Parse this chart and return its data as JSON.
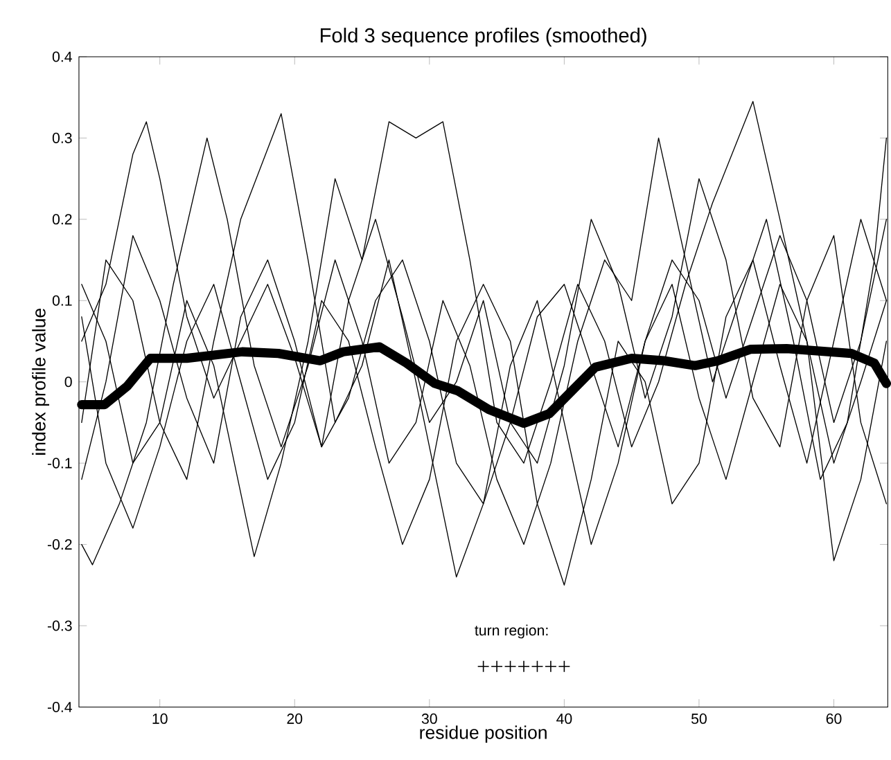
{
  "chart_data": {
    "type": "line",
    "title": "Fold 3 sequence profiles (smoothed)",
    "xlabel": "residue position",
    "ylabel": "index profile value",
    "xlim": [
      4,
      64
    ],
    "xticks": [
      10,
      20,
      30,
      40,
      50,
      60
    ],
    "ylim": [
      -0.4,
      0.4
    ],
    "yticks": [
      -0.4,
      -0.3,
      -0.2,
      -0.1,
      0,
      0.1,
      0.2,
      0.3,
      0.4
    ],
    "grid": false,
    "legend": false,
    "series": [
      {
        "color": "#000000",
        "x": [
          4.2,
          5.9,
          7.6,
          9.3,
          12.0,
          16.1,
          18.8,
          21.9,
          23.6,
          26.3,
          28.3,
          30.4,
          32.1,
          34.4,
          37.0,
          38.9,
          42.3,
          45.0,
          47.4,
          49.7,
          51.4,
          53.8,
          56.5,
          61.3,
          63.0,
          63.9
        ],
        "values": [
          -0.028,
          -0.028,
          -0.005,
          0.029,
          0.029,
          0.037,
          0.035,
          0.026,
          0.037,
          0.043,
          0.023,
          -0.002,
          -0.011,
          -0.034,
          -0.051,
          -0.039,
          0.018,
          0.029,
          0.026,
          0.02,
          0.026,
          0.04,
          0.041,
          0.035,
          0.023,
          -0.002
        ]
      },
      {
        "color": "#000000",
        "x": [
          4.2,
          6,
          8,
          9,
          10,
          12,
          14,
          16,
          18,
          20,
          22,
          24,
          26,
          28,
          30,
          32,
          34,
          36,
          38,
          40,
          42,
          44,
          46,
          48,
          50,
          52,
          54,
          56,
          58,
          60,
          62,
          63.9
        ],
        "values": [
          0.05,
          0.12,
          0.28,
          0.32,
          0.25,
          0.08,
          -0.02,
          0.05,
          0.12,
          0.03,
          -0.08,
          -0.02,
          0.1,
          0.15,
          0.05,
          -0.1,
          -0.15,
          -0.05,
          0.08,
          0.12,
          0.02,
          -0.08,
          0.05,
          0.15,
          0.1,
          -0.02,
          0.08,
          0.18,
          0.1,
          -0.05,
          0.05,
          0.2
        ]
      },
      {
        "color": "#000000",
        "x": [
          4.2,
          5,
          7,
          9,
          11,
          13.5,
          15,
          17,
          19,
          21,
          23,
          25,
          27,
          29,
          31,
          33,
          35,
          37,
          39,
          41,
          43,
          45,
          47,
          49,
          51,
          53,
          55,
          57,
          59,
          61,
          63,
          63.9
        ],
        "values": [
          -0.2,
          -0.225,
          -0.15,
          -0.05,
          0.12,
          0.3,
          0.2,
          0.02,
          -0.08,
          0.02,
          0.15,
          0.05,
          -0.1,
          -0.05,
          0.1,
          0.02,
          -0.12,
          -0.2,
          -0.1,
          0.05,
          0.15,
          0.1,
          0.3,
          0.15,
          0.0,
          0.1,
          0.2,
          0.05,
          -0.12,
          -0.05,
          0.15,
          0.3
        ]
      },
      {
        "color": "#000000",
        "x": [
          4.2,
          6,
          8,
          10,
          12,
          14,
          17,
          19,
          21,
          23,
          25,
          27,
          29,
          31,
          33,
          35,
          37,
          39,
          41,
          43,
          45,
          47,
          49,
          51,
          54,
          56,
          58,
          60,
          62,
          63.9
        ],
        "values": [
          0.12,
          0.05,
          -0.1,
          -0.05,
          0.1,
          0.02,
          -0.215,
          -0.1,
          0.05,
          0.25,
          0.15,
          0.32,
          0.3,
          0.32,
          0.15,
          -0.05,
          -0.1,
          0.0,
          0.12,
          0.05,
          -0.08,
          0.0,
          0.12,
          0.22,
          0.345,
          0.2,
          0.05,
          -0.1,
          0.0,
          0.1
        ]
      },
      {
        "color": "#000000",
        "x": [
          4.2,
          6,
          8,
          10,
          12,
          14,
          16,
          19,
          21,
          23,
          25,
          27,
          29,
          32,
          34,
          36,
          38,
          40,
          42,
          44,
          46,
          48,
          50,
          52,
          54,
          56,
          58,
          60,
          62,
          63.9
        ],
        "values": [
          -0.05,
          0.15,
          0.1,
          -0.05,
          -0.12,
          0.05,
          0.2,
          0.33,
          0.15,
          -0.05,
          0.02,
          0.15,
          0.0,
          -0.24,
          -0.15,
          0.02,
          0.1,
          -0.05,
          -0.2,
          -0.1,
          0.05,
          0.12,
          -0.02,
          -0.12,
          0.0,
          0.12,
          0.05,
          -0.22,
          -0.12,
          0.05
        ]
      },
      {
        "color": "#000000",
        "x": [
          4.2,
          6,
          8,
          10,
          12,
          14,
          16,
          18,
          20,
          22,
          24,
          26,
          28,
          30,
          32,
          34,
          36,
          38,
          40,
          42,
          44,
          46,
          48,
          50,
          52,
          54,
          56,
          58,
          60,
          62,
          63.9
        ],
        "values": [
          0.08,
          -0.1,
          -0.18,
          -0.08,
          0.05,
          0.12,
          0.0,
          -0.12,
          -0.05,
          0.1,
          0.05,
          -0.08,
          -0.2,
          -0.12,
          0.05,
          0.12,
          0.05,
          -0.15,
          -0.25,
          -0.12,
          0.05,
          0.0,
          -0.15,
          -0.1,
          0.08,
          0.15,
          0.02,
          -0.1,
          0.05,
          0.2,
          0.1
        ]
      },
      {
        "color": "#000000",
        "x": [
          4.2,
          6,
          8,
          10,
          12,
          14,
          16,
          18,
          20,
          22,
          24,
          26,
          28,
          30,
          32,
          34,
          36,
          38,
          40,
          42,
          44,
          46,
          48,
          50,
          52,
          54,
          56,
          58,
          60,
          62,
          63.9
        ],
        "values": [
          -0.12,
          0.0,
          0.18,
          0.1,
          -0.02,
          -0.1,
          0.08,
          0.15,
          0.05,
          -0.08,
          0.1,
          0.2,
          0.08,
          -0.05,
          0.0,
          0.1,
          -0.05,
          -0.1,
          0.02,
          0.2,
          0.12,
          -0.02,
          0.08,
          0.25,
          0.15,
          -0.02,
          -0.08,
          0.1,
          0.18,
          -0.05,
          -0.15
        ]
      },
      {
        "name": "turn region:",
        "type": "scatter",
        "marker": "cross",
        "color": "#000000",
        "x": [
          34,
          35,
          36,
          37,
          38,
          39,
          40
        ],
        "values": [
          -0.35,
          -0.35,
          -0.35,
          -0.35,
          -0.35,
          -0.35,
          -0.35
        ]
      }
    ]
  }
}
